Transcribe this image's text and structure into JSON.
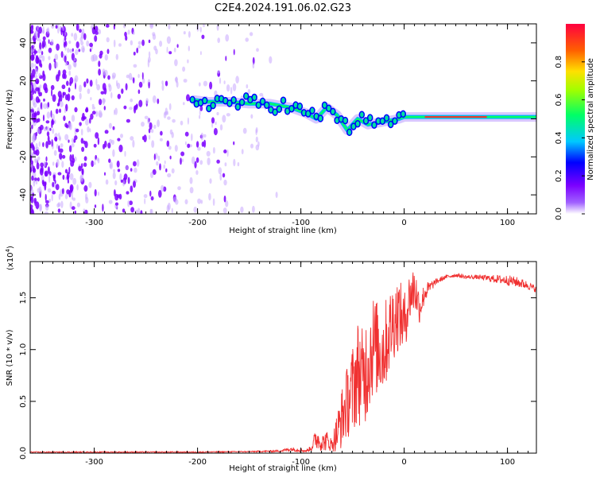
{
  "title": "C2E4.2024.191.06.02.G23",
  "chart_data": [
    {
      "type": "heatmap",
      "xlabel": "Height of straight line (km)",
      "ylabel": "Frequency (Hz)",
      "xlim": [
        -362,
        128
      ],
      "ylim": [
        -50,
        50
      ],
      "xticks": [
        -300,
        -200,
        -100,
        0,
        100
      ],
      "yticks": [
        -40,
        -20,
        0,
        20,
        40
      ],
      "colorbar": {
        "label": "Normalized spectral amplitude",
        "range": [
          0.0,
          1.0
        ],
        "ticks": [
          "0.0",
          "0.2",
          "0.4",
          "0.6",
          "0.8"
        ],
        "colors": [
          "#ffffff",
          "#7b00ff",
          "#0000ff",
          "#00c8ff",
          "#00ff66",
          "#a0ff00",
          "#ffe000",
          "#ff6000",
          "#ff0040"
        ]
      },
      "signal_ridge": {
        "description_of_track": "dominant frequency vs height",
        "x": [
          -205,
          -190,
          -170,
          -150,
          -130,
          -110,
          -95,
          -85,
          -75,
          -65,
          -55,
          -45,
          -35,
          -25,
          -15,
          -5,
          0,
          20,
          40,
          60,
          80,
          100,
          128
        ],
        "y": [
          10,
          9,
          9,
          8,
          8,
          6,
          3,
          0,
          6,
          2,
          -6,
          0,
          -3,
          -2,
          -1,
          0,
          1,
          1,
          1,
          1,
          1,
          1,
          1
        ]
      },
      "grid": false
    },
    {
      "type": "line",
      "xlabel": "Height of straight line (km)",
      "ylabel": "SNR (10 * v/v)",
      "multiplier": "(x10",
      "multiplier_exp": "4",
      "multiplier_close": ")",
      "xlim": [
        -362,
        128
      ],
      "ylim": [
        0.0,
        1.85
      ],
      "xticks": [
        -300,
        -200,
        -100,
        0,
        100
      ],
      "yticks": [
        "0.0",
        "0.5",
        "1.0",
        "1.5"
      ],
      "series": [
        {
          "color": "#f03030",
          "x": [
            -362,
            -300,
            -200,
            -150,
            -120,
            -110,
            -100,
            -95,
            -90,
            -85,
            -80,
            -75,
            -70,
            -65,
            -60,
            -55,
            -50,
            -45,
            -40,
            -35,
            -30,
            -25,
            -20,
            -15,
            -10,
            -5,
            0,
            5,
            10,
            15,
            20,
            25,
            30,
            40,
            50,
            60,
            70,
            80,
            90,
            100,
            110,
            120,
            128
          ],
          "y": [
            0.01,
            0.01,
            0.01,
            0.015,
            0.02,
            0.04,
            0.03,
            0.02,
            0.05,
            0.15,
            0.1,
            0.12,
            0.08,
            0.2,
            0.35,
            0.5,
            0.6,
            0.8,
            0.7,
            0.9,
            1.05,
            1.0,
            1.0,
            1.15,
            1.3,
            1.35,
            1.25,
            1.5,
            1.6,
            1.4,
            1.55,
            1.6,
            1.65,
            1.7,
            1.72,
            1.7,
            1.7,
            1.69,
            1.68,
            1.67,
            1.65,
            1.62,
            1.58
          ],
          "noise_amplitude": [
            0.005,
            0.005,
            0.005,
            0.005,
            0.01,
            0.02,
            0.02,
            0.01,
            0.03,
            0.12,
            0.08,
            0.1,
            0.06,
            0.2,
            0.3,
            0.35,
            0.45,
            0.5,
            0.5,
            0.55,
            0.5,
            0.45,
            0.45,
            0.4,
            0.4,
            0.35,
            0.3,
            0.25,
            0.25,
            0.15,
            0.1,
            0.06,
            0.03,
            0.02,
            0.02,
            0.02,
            0.02,
            0.03,
            0.04,
            0.05,
            0.05,
            0.04,
            0.03
          ]
        }
      ],
      "grid": false
    }
  ]
}
